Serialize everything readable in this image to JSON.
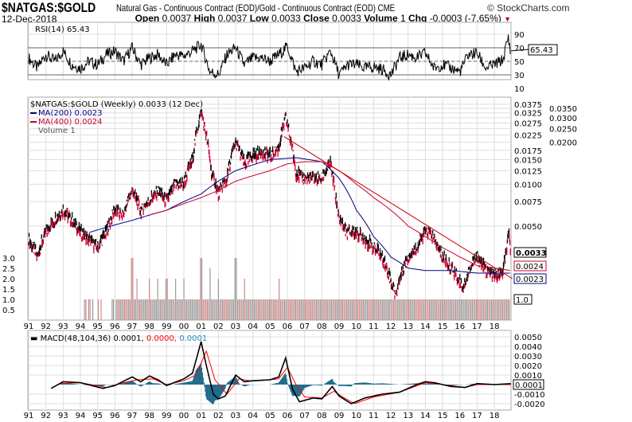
{
  "header": {
    "symbol": "$NATGAS:$GOLD",
    "description": "Natural Gas - Continuous Contract (EOD)/Gold - Continuous Contract (EOD)",
    "exchange": "CME",
    "copyright": "© StockCharts.com",
    "date": "12-Dec-2018",
    "open_label": "Open",
    "open": "0.0037",
    "high_label": "High",
    "high": "0.0037",
    "low_label": "Low",
    "low": "0.0033",
    "close_label": "Close",
    "close": "0.0033",
    "volume_label": "Volume",
    "volume": "1",
    "chg_label": "Chg",
    "chg": "-0.0003 (-7.65%)"
  },
  "chart_data": [
    {
      "type": "line",
      "panel": "rsi",
      "title": "RSI(14) 65.43",
      "last": "65.43",
      "ylim": [
        10,
        100
      ],
      "yticks": [
        "90",
        "70",
        "50",
        "30",
        "10"
      ],
      "reference_lines": [
        70,
        50,
        30
      ],
      "x": [
        91.0,
        91.5,
        92.0,
        92.5,
        93.0,
        93.5,
        94.0,
        94.5,
        95.0,
        95.5,
        96.0,
        96.5,
        97.0,
        97.5,
        98.0,
        98.5,
        99.0,
        99.5,
        100.0,
        100.5,
        101.0,
        101.5,
        102.0,
        102.5,
        103.0,
        103.5,
        104.0,
        104.5,
        105.0,
        105.5,
        106.0,
        106.5,
        107.0,
        107.5,
        108.0,
        108.5,
        109.0,
        109.5,
        110.0,
        110.5,
        111.0,
        111.5,
        112.0,
        112.5,
        113.0,
        113.5,
        114.0,
        114.5,
        115.0,
        115.5,
        116.0,
        116.5,
        117.0,
        117.5,
        118.0,
        118.5,
        118.8,
        118.95
      ],
      "values": [
        55,
        40,
        60,
        50,
        65,
        45,
        40,
        50,
        45,
        60,
        65,
        50,
        70,
        45,
        55,
        60,
        45,
        60,
        58,
        65,
        75,
        35,
        30,
        60,
        70,
        45,
        55,
        55,
        50,
        60,
        72,
        35,
        40,
        50,
        45,
        65,
        30,
        45,
        45,
        40,
        42,
        38,
        30,
        55,
        60,
        55,
        62,
        40,
        45,
        40,
        35,
        60,
        62,
        40,
        45,
        52,
        85,
        65.43
      ]
    },
    {
      "type": "ohlc",
      "panel": "price",
      "title": "$NATGAS:$GOLD (Weekly) 0.0033 (12 Dec)",
      "scale": "log",
      "ylim": [
        0.0014,
        0.0375
      ],
      "yticks": [
        "0.0375",
        "0.0350",
        "0.0325",
        "0.0300",
        "0.0275",
        "0.0250",
        "0.0225",
        "0.0200",
        "0.0175",
        "0.0150",
        "0.0125",
        "0.0100",
        "0.0075",
        "0.0050"
      ],
      "xticks": [
        "91",
        "92",
        "93",
        "94",
        "95",
        "96",
        "97",
        "98",
        "99",
        "00",
        "01",
        "02",
        "03",
        "04",
        "05",
        "06",
        "07",
        "08",
        "09",
        "10",
        "11",
        "12",
        "13",
        "14",
        "15",
        "16",
        "17",
        "18"
      ],
      "last": "0.0033",
      "close_x": [
        91.0,
        91.5,
        92.0,
        92.5,
        93.0,
        93.5,
        94.0,
        94.5,
        95.0,
        95.5,
        96.0,
        96.5,
        97.0,
        97.5,
        98.0,
        98.5,
        99.0,
        99.5,
        100.0,
        100.5,
        101.0,
        101.3,
        101.6,
        102.0,
        102.5,
        103.0,
        103.5,
        104.0,
        104.5,
        105.0,
        105.5,
        105.9,
        106.2,
        106.5,
        107.0,
        107.5,
        108.0,
        108.5,
        108.8,
        109.0,
        109.5,
        110.0,
        110.5,
        111.0,
        111.5,
        112.0,
        112.3,
        112.7,
        113.0,
        113.5,
        114.0,
        114.3,
        114.7,
        115.0,
        115.5,
        116.0,
        116.2,
        116.6,
        117.0,
        117.5,
        118.0,
        118.5,
        118.85,
        118.95
      ],
      "close": [
        0.004,
        0.003,
        0.0045,
        0.0055,
        0.0065,
        0.0055,
        0.0045,
        0.004,
        0.0035,
        0.0045,
        0.0065,
        0.006,
        0.009,
        0.0065,
        0.0075,
        0.009,
        0.0075,
        0.01,
        0.01,
        0.015,
        0.033,
        0.022,
        0.012,
        0.0085,
        0.011,
        0.02,
        0.014,
        0.016,
        0.017,
        0.016,
        0.018,
        0.03,
        0.02,
        0.012,
        0.011,
        0.011,
        0.011,
        0.014,
        0.008,
        0.0055,
        0.0045,
        0.0045,
        0.004,
        0.0035,
        0.003,
        0.002,
        0.0016,
        0.0025,
        0.003,
        0.0035,
        0.0045,
        0.0045,
        0.0035,
        0.003,
        0.0025,
        0.002,
        0.0018,
        0.0025,
        0.003,
        0.0024,
        0.0022,
        0.0023,
        0.0042,
        0.0033
      ],
      "series": [
        {
          "name": "MA(200) 0.0023",
          "label": "MA(200)",
          "last": "0.0023",
          "color": "#000080",
          "x": [
            94.5,
            97,
            99,
            101,
            103,
            105,
            106.5,
            108,
            109,
            110,
            111,
            112,
            113,
            114,
            115.5,
            117,
            118.95
          ],
          "values": [
            0.0045,
            0.0055,
            0.0065,
            0.0085,
            0.0125,
            0.015,
            0.0155,
            0.0145,
            0.011,
            0.0065,
            0.0042,
            0.003,
            0.0025,
            0.0024,
            0.0024,
            0.0023,
            0.0023
          ]
        },
        {
          "name": "MA(400) 0.0024",
          "label": "MA(400)",
          "last": "0.0024",
          "color": "#cc0033",
          "x": [
            98,
            99,
            101,
            102,
            103,
            105,
            106,
            107,
            108,
            109,
            110,
            111,
            112,
            113,
            114,
            115,
            116,
            117,
            118.95
          ],
          "values": [
            0.006,
            0.0065,
            0.008,
            0.009,
            0.0105,
            0.0125,
            0.014,
            0.0145,
            0.0145,
            0.0125,
            0.01,
            0.008,
            0.0065,
            0.005,
            0.0042,
            0.0035,
            0.003,
            0.0026,
            0.0024
          ]
        }
      ],
      "trendline": {
        "x": [
          105.8,
          118.95
        ],
        "values": [
          0.022,
          0.0021
        ],
        "color": "#cc0000"
      }
    },
    {
      "type": "bar",
      "panel": "volume",
      "title": "Volume 1",
      "last": "1.0",
      "yticks": [
        "3.0",
        "2.5",
        "2.0",
        "1.5",
        "1.0",
        "0.5"
      ],
      "typical": 1.0,
      "spikes_x": [
        96.0,
        97.0,
        97.3,
        98.0,
        98.5,
        99.0,
        99.5,
        100.0,
        101.0,
        101.5,
        102.0,
        103.0,
        103.5,
        105.5
      ],
      "spikes": [
        2.0,
        3.0,
        2.0,
        2.0,
        2.0,
        2.0,
        2.0,
        2.0,
        3.0,
        2.5,
        2.0,
        3.0,
        2.0,
        2.0
      ],
      "start_x": 94.0
    },
    {
      "type": "line",
      "panel": "macd",
      "title": "MACD(48,104,36)",
      "macd_value": "0.0001",
      "signal_value": "0.0000",
      "hist_value": "0.0001",
      "last": "0.0001",
      "ylim": [
        -0.0025,
        0.0055
      ],
      "yticks": [
        "0.0050",
        "0.0040",
        "0.0030",
        "0.0020",
        "0.0010",
        "-0.0010",
        "-0.0020"
      ],
      "series": [
        {
          "name": "MACD",
          "color": "#000000",
          "x": [
            92.3,
            93,
            94,
            95.3,
            96,
            97,
            97.5,
            98,
            98.5,
            99,
            100,
            100.5,
            101,
            101.3,
            101.7,
            102,
            102.4,
            103,
            103.5,
            104,
            105,
            105.5,
            105.9,
            106.3,
            106.7,
            107.5,
            108,
            108.6,
            109,
            109.7,
            110.5,
            111.5,
            112.5,
            113.5,
            114,
            114.5,
            115.5,
            116.3,
            117,
            118,
            118.95
          ],
          "values": [
            -0.0004,
            0.0003,
            0.0002,
            -0.0004,
            -0.0001,
            0.0008,
            0.0003,
            0.0009,
            0.0005,
            -0.0001,
            0.0006,
            0.0012,
            0.0045,
            0.002,
            -0.001,
            -0.0015,
            -0.0012,
            0.001,
            0.0003,
            0.0004,
            0.0005,
            0.0008,
            0.0028,
            -0.0005,
            -0.0018,
            -0.0014,
            -0.0015,
            -0.0002,
            -0.0012,
            -0.002,
            -0.0014,
            -0.001,
            -0.0008,
            0,
            0.0003,
            0.0002,
            -0.0002,
            -0.0003,
            0.0001,
            0,
            0.0001
          ]
        },
        {
          "name": "Signal",
          "color": "#ff0000",
          "x": [
            92.8,
            94,
            95.5,
            96.5,
            97.3,
            98.2,
            99,
            100,
            100.7,
            101.3,
            101.8,
            102.5,
            103.2,
            103.8,
            105,
            105.5,
            106,
            106.5,
            107,
            108,
            108.7,
            109.3,
            109.9,
            111,
            112.5,
            114,
            115,
            116.3,
            117,
            118,
            118.95
          ],
          "values": [
            0.0001,
            0.0002,
            -0.0003,
            0.0002,
            0.0005,
            0.0006,
            0,
            0.0004,
            0.001,
            0.0035,
            0.0005,
            -0.001,
            0.0006,
            0.0004,
            0.0005,
            0.0006,
            0.0018,
            0,
            -0.0013,
            -0.0014,
            -0.0007,
            -0.0014,
            -0.002,
            -0.0013,
            -0.0008,
            0.0002,
            0,
            -0.0003,
            0,
            0,
            0
          ]
        }
      ],
      "histogram_color": "#1f6b8c"
    }
  ]
}
